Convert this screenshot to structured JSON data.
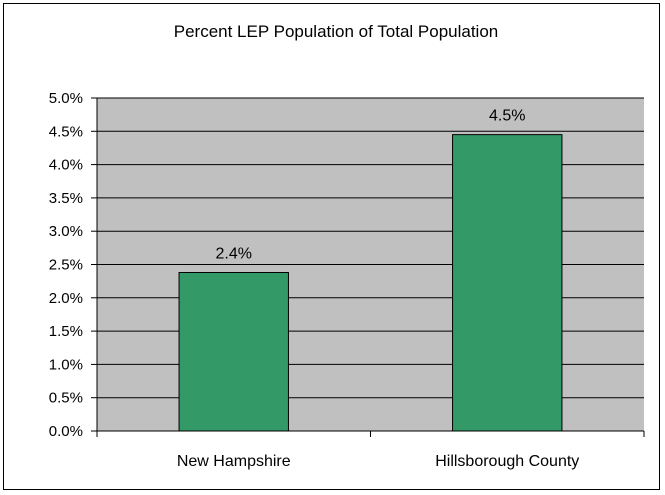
{
  "chart_data": {
    "type": "bar",
    "title": "Percent LEP Population of Total Population",
    "categories": [
      "New Hampshire",
      "Hillsborough County"
    ],
    "values": [
      2.4,
      4.5
    ],
    "bar_heights_pct": [
      2.38,
      4.45
    ],
    "data_labels": [
      "2.4%",
      "4.5%"
    ],
    "ylim": [
      0,
      5
    ],
    "y_tick_step": 0.5,
    "y_tick_labels": [
      "0.0%",
      "0.5%",
      "1.0%",
      "1.5%",
      "2.0%",
      "2.5%",
      "3.0%",
      "3.5%",
      "4.0%",
      "4.5%",
      "5.0%"
    ],
    "xlabel": "",
    "ylabel": "",
    "grid": true,
    "legend": "none",
    "colors": {
      "bar": "#339966",
      "plot_background": "#c0c0c0",
      "gridline": "#000000",
      "frame": "#000000"
    }
  }
}
